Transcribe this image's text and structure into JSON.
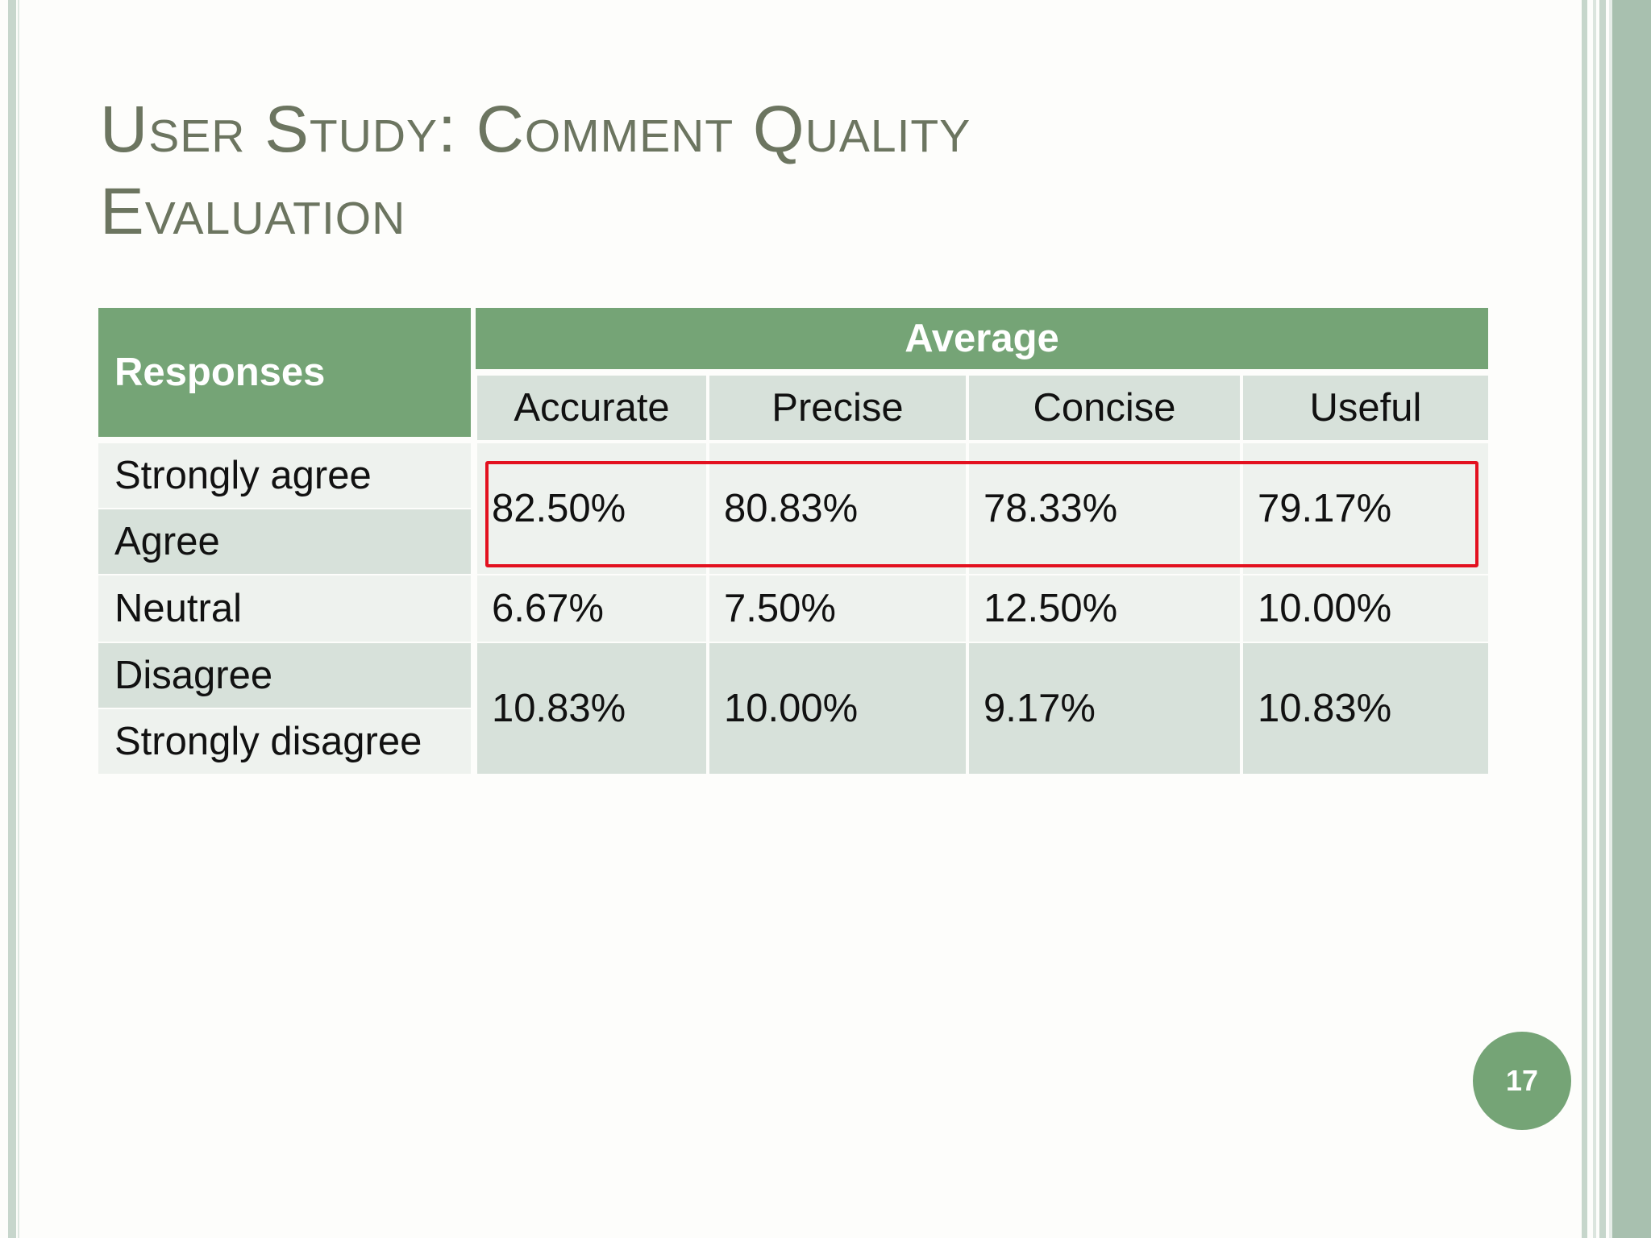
{
  "slide": {
    "title_line1": "User Study: Comment Quality",
    "title_line2": "Evaluation",
    "page_number": "17"
  },
  "table": {
    "row_header": "Responses",
    "group_header": "Average",
    "columns": [
      "Accurate",
      "Precise",
      "Concise",
      "Useful"
    ],
    "rows": [
      {
        "labels": [
          "Strongly agree",
          "Agree"
        ],
        "values": [
          "82.50%",
          "80.83%",
          "78.33%",
          "79.17%"
        ]
      },
      {
        "labels": [
          "Neutral"
        ],
        "values": [
          "6.67%",
          "7.50%",
          "12.50%",
          "10.00%"
        ]
      },
      {
        "labels": [
          "Disagree",
          "Strongly disagree"
        ],
        "values": [
          "10.83%",
          "10.00%",
          "9.17%",
          "10.83%"
        ]
      }
    ]
  },
  "colors": {
    "header_green": "#75a476",
    "title_gray": "#6c7560",
    "highlight_red": "#e3111f"
  }
}
